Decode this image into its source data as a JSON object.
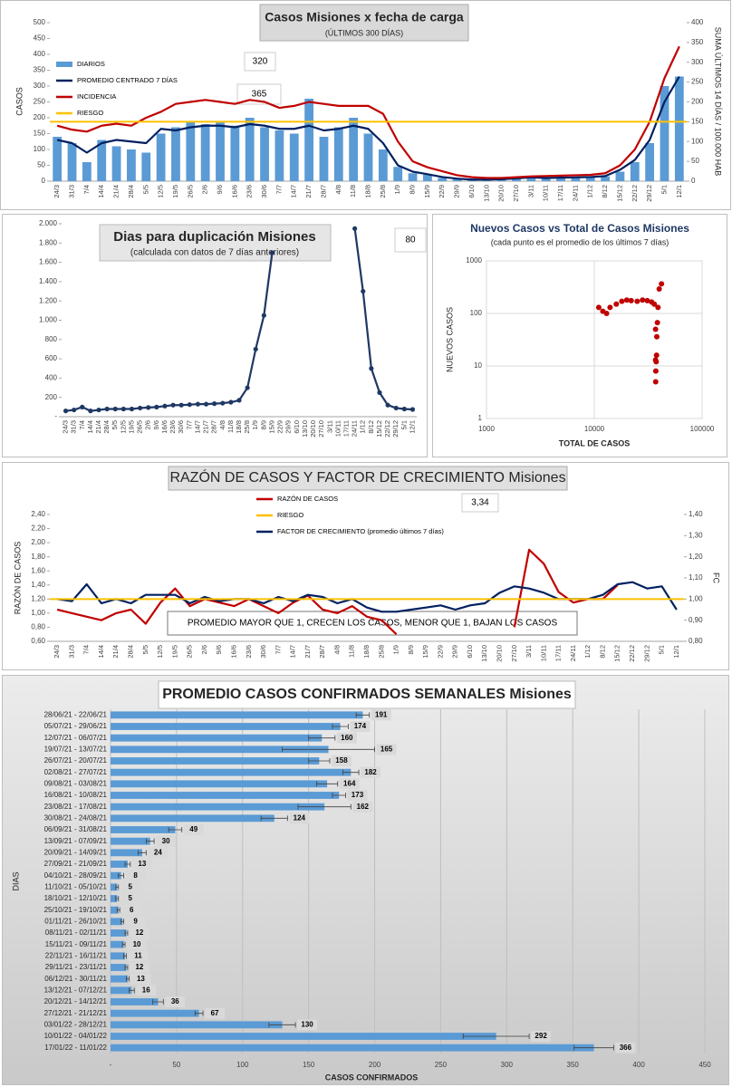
{
  "chart_data": [
    {
      "type": "combo",
      "title": "Casos  Misiones  x fecha de carga",
      "subtitle": "(ÚLTIMOS 300 DÍAS)",
      "y_label": "CASOS",
      "y2_label": "SUMA  ÚLTIMOS 14 DÍAS / 100.000 HAB",
      "categories": [
        "24/3",
        "31/3",
        "7/4",
        "14/4",
        "21/4",
        "28/4",
        "5/5",
        "12/5",
        "19/5",
        "26/5",
        "2/6",
        "9/6",
        "16/6",
        "23/6",
        "30/6",
        "7/7",
        "14/7",
        "21/7",
        "28/7",
        "4/8",
        "11/8",
        "18/8",
        "25/8",
        "1/9",
        "8/9",
        "15/9",
        "22/9",
        "29/9",
        "6/10",
        "13/10",
        "20/10",
        "27/10",
        "3/11",
        "10/11",
        "17/11",
        "24/11",
        "1/12",
        "8/12",
        "15/12",
        "22/12",
        "29/12",
        "5/1",
        "12/1"
      ],
      "series": [
        {
          "name": "DIARIOS",
          "kind": "bar",
          "color": "#5b9bd5",
          "values": [
            140,
            120,
            60,
            130,
            110,
            100,
            90,
            150,
            170,
            190,
            180,
            185,
            175,
            200,
            170,
            160,
            150,
            260,
            140,
            170,
            200,
            150,
            100,
            45,
            25,
            20,
            10,
            7,
            4,
            5,
            6,
            8,
            12,
            9,
            10,
            12,
            14,
            15,
            30,
            60,
            120,
            300,
            330
          ]
        },
        {
          "name": "PROMEDIO CENTRADO 7 DÍAS",
          "kind": "line",
          "color": "#002060",
          "values": [
            130,
            120,
            90,
            120,
            130,
            125,
            120,
            165,
            160,
            170,
            175,
            175,
            170,
            180,
            175,
            165,
            165,
            175,
            160,
            165,
            175,
            165,
            120,
            50,
            30,
            22,
            13,
            8,
            5,
            5,
            6,
            9,
            12,
            10,
            11,
            12,
            13,
            16,
            36,
            67,
            130,
            250,
            330
          ]
        },
        {
          "name": "INCIDENCIA",
          "kind": "line",
          "color": "#c00000",
          "axis": "y2",
          "values": [
            140,
            130,
            125,
            140,
            145,
            140,
            160,
            175,
            195,
            200,
            205,
            200,
            195,
            205,
            200,
            185,
            190,
            200,
            195,
            190,
            190,
            190,
            170,
            100,
            50,
            35,
            25,
            15,
            10,
            8,
            8,
            10,
            12,
            13,
            14,
            15,
            16,
            20,
            40,
            80,
            150,
            260,
            340
          ]
        }
      ],
      "reference": {
        "name": "RIESGO",
        "color": "#ffc000",
        "value": 150,
        "axis": "y2"
      },
      "annotations": [
        "320",
        "365"
      ],
      "ylim": [
        0,
        500
      ],
      "yticks": [
        0,
        50,
        100,
        150,
        200,
        250,
        300,
        350,
        400,
        450,
        500
      ],
      "y2lim": [
        0,
        400
      ],
      "y2ticks": [
        0,
        50,
        100,
        150,
        200,
        250,
        300,
        350,
        400
      ]
    },
    {
      "type": "line",
      "title": "Dias para duplicación Misiones",
      "subtitle": "(calculada con datos de 7 días anteriores)",
      "annotations": [
        "80"
      ],
      "categories": [
        "24/3",
        "31/3",
        "7/4",
        "14/4",
        "21/4",
        "28/4",
        "5/5",
        "12/5",
        "19/5",
        "26/5",
        "2/6",
        "9/6",
        "16/6",
        "23/6",
        "30/6",
        "7/7",
        "14/7",
        "21/7",
        "28/7",
        "4/8",
        "11/8",
        "18/8",
        "25/8",
        "1/9",
        "8/9",
        "15/9",
        "22/9",
        "29/9",
        "6/10",
        "13/10",
        "20/10",
        "27/10",
        "3/11",
        "10/11",
        "17/11",
        "24/11",
        "1/12",
        "8/12",
        "15/12",
        "22/12",
        "29/12",
        "5/1",
        "12/1"
      ],
      "series": [
        {
          "color": "#1f3864",
          "values": [
            60,
            70,
            100,
            60,
            70,
            80,
            80,
            80,
            80,
            90,
            95,
            100,
            110,
            120,
            120,
            125,
            130,
            130,
            135,
            140,
            150,
            170,
            300,
            700,
            1050,
            1700,
            null,
            null,
            null,
            null,
            null,
            null,
            null,
            null,
            null,
            1950,
            1300,
            500,
            250,
            120,
            90,
            80,
            75
          ]
        }
      ],
      "markers": true,
      "ylim": [
        0,
        2000
      ],
      "yticks": [
        {
          "value": 0,
          "label": "-"
        },
        200,
        400,
        600,
        800,
        {
          "value": 1000,
          "label": "1.000"
        },
        {
          "value": 1200,
          "label": "1.200"
        },
        {
          "value": 1400,
          "label": "1.400"
        },
        {
          "value": 1600,
          "label": "1.600"
        },
        {
          "value": 1800,
          "label": "1.800"
        },
        {
          "value": 2000,
          "label": "2.000"
        }
      ]
    },
    {
      "type": "scatter",
      "title": "Nuevos Casos vs Total de Casos Misiones",
      "subtitle": "(cada punto es el promedio de los últimos 7 días)",
      "x_label": "TOTAL DE CASOS",
      "y_label": "NUEVOS CASOS",
      "log_x": true,
      "log_y": true,
      "xlim": [
        1000,
        100000
      ],
      "xticks": [
        1000,
        10000,
        100000
      ],
      "ylim": [
        1,
        1000
      ],
      "yticks": [
        1,
        10,
        100,
        1000
      ],
      "color": "#c00000",
      "x": [
        11000,
        12000,
        13000,
        14000,
        16000,
        18000,
        20000,
        22000,
        25000,
        28000,
        31000,
        34000,
        36000,
        37000,
        37000,
        37100,
        37200,
        37500,
        37800,
        38000,
        38500,
        39000,
        40000,
        42000
      ],
      "y": [
        130,
        110,
        100,
        130,
        150,
        170,
        180,
        175,
        170,
        180,
        175,
        165,
        150,
        50,
        13,
        5,
        8,
        12,
        16,
        36,
        67,
        130,
        292,
        366
      ]
    },
    {
      "type": "line",
      "title": "RAZÓN DE CASOS Y FACTOR DE CRECIMIENTO Misiones",
      "annotations": [
        "3,34"
      ],
      "note": "PROMEDIO MAYOR QUE 1, CRECEN LOS CASOS, MENOR QUE 1, BAJAN LOS CASOS",
      "y_label": "RAZÓN DE CASOS",
      "y2_label": "FC",
      "categories": [
        "24/3",
        "31/3",
        "7/4",
        "14/4",
        "21/4",
        "28/4",
        "5/5",
        "12/5",
        "19/5",
        "26/5",
        "2/6",
        "9/6",
        "16/6",
        "23/6",
        "30/6",
        "7/7",
        "14/7",
        "21/7",
        "28/7",
        "4/8",
        "11/8",
        "18/8",
        "25/8",
        "1/9",
        "8/9",
        "15/9",
        "22/9",
        "29/9",
        "6/10",
        "13/10",
        "20/10",
        "27/10",
        "3/11",
        "10/11",
        "17/11",
        "24/11",
        "1/12",
        "8/12",
        "15/12",
        "22/12",
        "29/12",
        "5/1",
        "12/1"
      ],
      "series": [
        {
          "name": "RAZÓN DE CASOS",
          "color": "#c00000",
          "values": [
            1.05,
            1.0,
            0.95,
            0.9,
            1.0,
            1.05,
            0.85,
            1.15,
            1.35,
            1.1,
            1.2,
            1.15,
            1.1,
            1.2,
            1.1,
            1.0,
            1.15,
            1.25,
            1.05,
            1.0,
            1.1,
            0.95,
            0.9,
            0.7,
            null,
            null,
            null,
            null,
            null,
            null,
            null,
            0.8,
            1.9,
            1.7,
            1.3,
            1.15,
            1.2,
            1.2,
            1.4,
            null,
            null,
            null,
            null
          ]
        },
        {
          "name": "FACTOR DE CRECIMIENTO (promedio últimos 7 días)",
          "color": "#002060",
          "axis": "y2",
          "values": [
            1.0,
            0.99,
            1.07,
            0.98,
            1.0,
            0.98,
            1.02,
            1.02,
            1.02,
            0.98,
            1.01,
            0.99,
            1.0,
            1.0,
            0.98,
            1.01,
            0.99,
            1.02,
            1.01,
            0.98,
            1.0,
            0.96,
            0.94,
            0.94,
            0.95,
            0.96,
            0.97,
            0.95,
            0.97,
            0.98,
            1.03,
            1.06,
            1.05,
            1.03,
            1.0,
            1.0,
            1.0,
            1.02,
            1.07,
            1.08,
            1.05,
            1.06,
            0.95
          ]
        }
      ],
      "reference": {
        "name": "RIESGO",
        "color": "#ffc000",
        "value": 1,
        "axis": "y2"
      },
      "ylim": [
        0.6,
        2.4
      ],
      "yticks": [
        {
          "value": 0.6,
          "label": "0,60"
        },
        {
          "value": 0.8,
          "label": "0,80"
        },
        {
          "value": 1,
          "label": "1,00"
        },
        {
          "value": 1.2,
          "label": "1,20"
        },
        {
          "value": 1.4,
          "label": "1,40"
        },
        {
          "value": 1.6,
          "label": "1,60"
        },
        {
          "value": 1.8,
          "label": "1,80"
        },
        {
          "value": 2,
          "label": "2,00"
        },
        {
          "value": 2.2,
          "label": "2,20"
        },
        {
          "value": 2.4,
          "label": "2,40"
        }
      ],
      "y2lim": [
        0.8,
        1.4
      ],
      "y2ticks": [
        {
          "value": 0.8,
          "label": "0,80"
        },
        {
          "value": 0.9,
          "label": "0,90"
        },
        {
          "value": 1,
          "label": "1,00"
        },
        {
          "value": 1.1,
          "label": "1,10"
        },
        {
          "value": 1.2,
          "label": "1,20"
        },
        {
          "value": 1.3,
          "label": "1,30"
        },
        {
          "value": 1.4,
          "label": "1,40"
        }
      ]
    },
    {
      "type": "bar",
      "orientation": "horizontal",
      "title": "PROMEDIO CASOS CONFIRMADOS SEMANALES Misiones",
      "x_label": "CASOS CONFIRMADOS",
      "y_label": "DIAS",
      "color": "#5b9bd5",
      "grid": true,
      "categories": [
        "28/06/21 - 22/06/21",
        "05/07/21 - 29/06/21",
        "12/07/21 - 06/07/21",
        "19/07/21 - 13/07/21",
        "26/07/21 - 20/07/21",
        "02/08/21 - 27/07/21",
        "09/08/21 - 03/08/21",
        "16/08/21 - 10/08/21",
        "23/08/21 - 17/08/21",
        "30/08/21 - 24/08/21",
        "06/09/21 - 31/08/21",
        "13/09/21 - 07/09/21",
        "20/09/21 - 14/09/21",
        "27/09/21 - 21/09/21",
        "04/10/21 - 28/09/21",
        "11/10/21 - 05/10/21",
        "18/10/21 - 12/10/21",
        "25/10/21 - 19/10/21",
        "01/11/21 - 26/10/21",
        "08/11/21 - 02/11/21",
        "15/11/21 - 09/11/21",
        "22/11/21 - 16/11/21",
        "29/11/21 - 23/11/21",
        "06/12/21 - 30/11/21",
        "13/12/21 - 07/12/21",
        "20/12/21 - 14/12/21",
        "27/12/21 - 21/12/21",
        "03/01/22 - 28/12/21",
        "10/01/22 - 04/01/22",
        "17/01/22 - 11/01/22"
      ],
      "values": [
        191,
        174,
        160,
        165,
        158,
        182,
        164,
        173,
        162,
        124,
        49,
        30,
        24,
        13,
        8,
        5,
        5,
        6,
        9,
        12,
        10,
        11,
        12,
        13,
        16,
        36,
        67,
        130,
        292,
        366
      ],
      "errors": [
        5,
        6,
        10,
        35,
        8,
        6,
        8,
        5,
        20,
        10,
        5,
        3,
        3,
        2,
        2,
        1,
        1,
        1,
        1,
        1,
        1,
        1,
        1,
        1,
        2,
        4,
        3,
        10,
        25,
        15
      ],
      "xlim": [
        0,
        450
      ],
      "xticks": [
        {
          "value": 0,
          "label": "-"
        },
        50,
        100,
        150,
        200,
        250,
        300,
        350,
        400,
        450
      ]
    }
  ]
}
